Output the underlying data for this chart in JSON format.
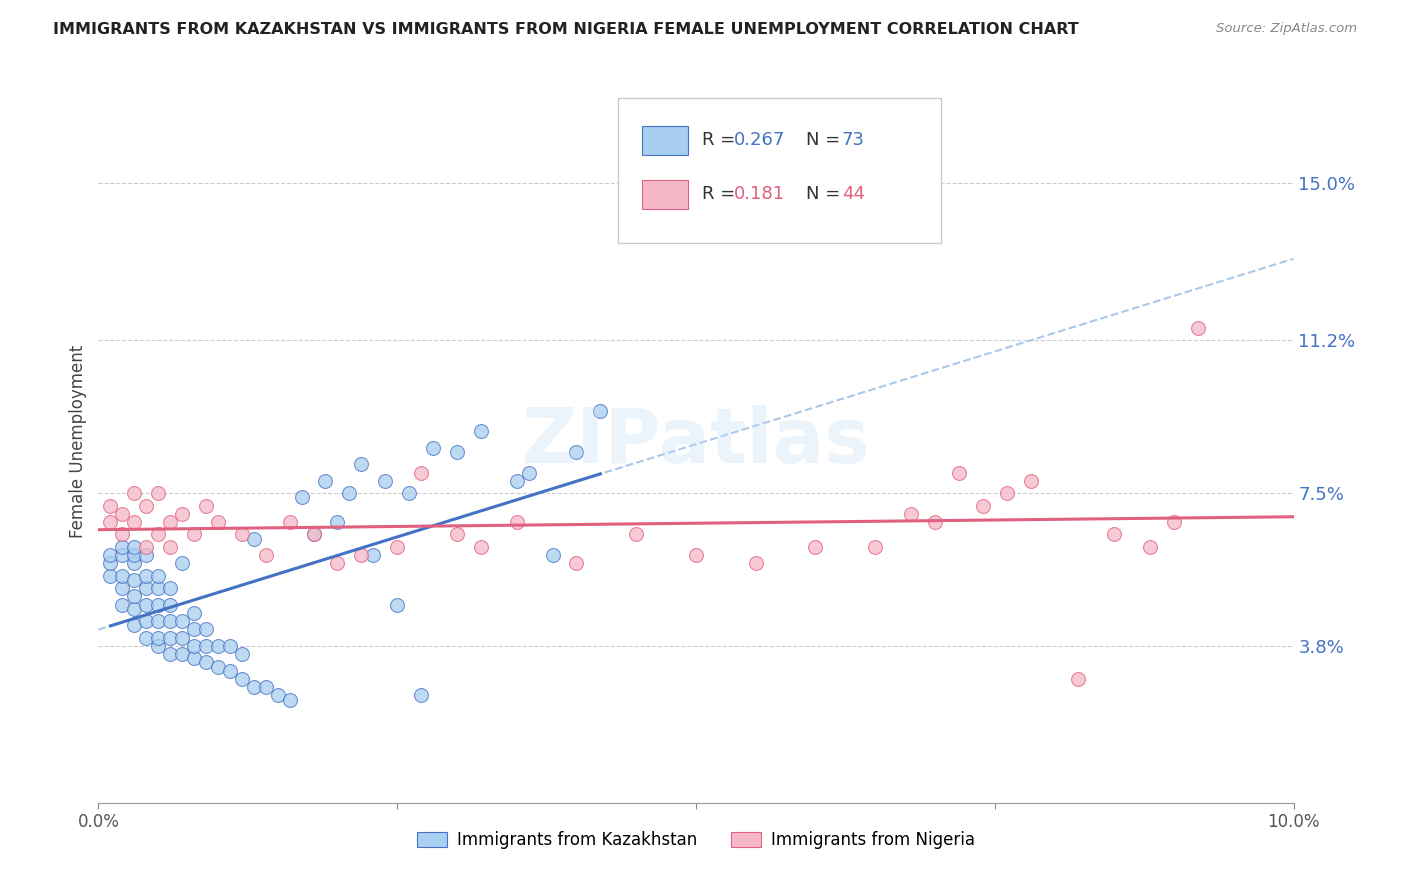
{
  "title": "IMMIGRANTS FROM KAZAKHSTAN VS IMMIGRANTS FROM NIGERIA FEMALE UNEMPLOYMENT CORRELATION CHART",
  "source": "Source: ZipAtlas.com",
  "ylabel": "Female Unemployment",
  "legend_label_1": "Immigrants from Kazakhstan",
  "legend_label_2": "Immigrants from Nigeria",
  "r1": "0.267",
  "n1": "73",
  "r2": "0.181",
  "n2": "44",
  "color_kaz": "#a8cef0",
  "color_nig": "#f5b8c8",
  "line_color_kaz": "#4472c4",
  "line_color_nig": "#e06080",
  "dashed_color": "#aac8e8",
  "xlim": [
    0.0,
    0.1
  ],
  "ylim": [
    0.0,
    0.175
  ],
  "yticks": [
    0.038,
    0.075,
    0.112,
    0.15
  ],
  "ytick_labels": [
    "3.8%",
    "7.5%",
    "11.2%",
    "15.0%"
  ],
  "xticks": [
    0.0,
    0.025,
    0.05,
    0.075,
    0.1
  ],
  "xtick_labels": [
    "0.0%",
    "",
    "",
    "",
    "10.0%"
  ],
  "watermark": "ZIPatlas",
  "kaz_x": [
    0.001,
    0.001,
    0.001,
    0.002,
    0.002,
    0.002,
    0.002,
    0.002,
    0.003,
    0.003,
    0.003,
    0.003,
    0.003,
    0.003,
    0.003,
    0.004,
    0.004,
    0.004,
    0.004,
    0.004,
    0.004,
    0.005,
    0.005,
    0.005,
    0.005,
    0.005,
    0.005,
    0.006,
    0.006,
    0.006,
    0.006,
    0.006,
    0.007,
    0.007,
    0.007,
    0.007,
    0.008,
    0.008,
    0.008,
    0.008,
    0.009,
    0.009,
    0.009,
    0.01,
    0.01,
    0.011,
    0.011,
    0.012,
    0.012,
    0.013,
    0.013,
    0.014,
    0.015,
    0.016,
    0.017,
    0.018,
    0.019,
    0.02,
    0.021,
    0.022,
    0.023,
    0.024,
    0.025,
    0.026,
    0.027,
    0.028,
    0.03,
    0.032,
    0.035,
    0.036,
    0.038,
    0.04,
    0.042
  ],
  "kaz_y": [
    0.055,
    0.058,
    0.06,
    0.048,
    0.052,
    0.055,
    0.06,
    0.062,
    0.043,
    0.047,
    0.05,
    0.054,
    0.058,
    0.06,
    0.062,
    0.04,
    0.044,
    0.048,
    0.052,
    0.055,
    0.06,
    0.038,
    0.04,
    0.044,
    0.048,
    0.052,
    0.055,
    0.036,
    0.04,
    0.044,
    0.048,
    0.052,
    0.036,
    0.04,
    0.044,
    0.058,
    0.035,
    0.038,
    0.042,
    0.046,
    0.034,
    0.038,
    0.042,
    0.033,
    0.038,
    0.032,
    0.038,
    0.03,
    0.036,
    0.028,
    0.064,
    0.028,
    0.026,
    0.025,
    0.074,
    0.065,
    0.078,
    0.068,
    0.075,
    0.082,
    0.06,
    0.078,
    0.048,
    0.075,
    0.026,
    0.086,
    0.085,
    0.09,
    0.078,
    0.08,
    0.06,
    0.085,
    0.095
  ],
  "nig_x": [
    0.001,
    0.001,
    0.002,
    0.002,
    0.003,
    0.003,
    0.004,
    0.004,
    0.005,
    0.005,
    0.006,
    0.006,
    0.007,
    0.008,
    0.009,
    0.01,
    0.012,
    0.014,
    0.016,
    0.018,
    0.02,
    0.022,
    0.025,
    0.027,
    0.03,
    0.032,
    0.035,
    0.04,
    0.045,
    0.05,
    0.055,
    0.06,
    0.065,
    0.068,
    0.07,
    0.072,
    0.074,
    0.076,
    0.078,
    0.082,
    0.085,
    0.088,
    0.09,
    0.092
  ],
  "nig_y": [
    0.072,
    0.068,
    0.07,
    0.065,
    0.075,
    0.068,
    0.062,
    0.072,
    0.065,
    0.075,
    0.068,
    0.062,
    0.07,
    0.065,
    0.072,
    0.068,
    0.065,
    0.06,
    0.068,
    0.065,
    0.058,
    0.06,
    0.062,
    0.08,
    0.065,
    0.062,
    0.068,
    0.058,
    0.065,
    0.06,
    0.058,
    0.062,
    0.062,
    0.07,
    0.068,
    0.08,
    0.072,
    0.075,
    0.078,
    0.03,
    0.065,
    0.062,
    0.068,
    0.115
  ]
}
